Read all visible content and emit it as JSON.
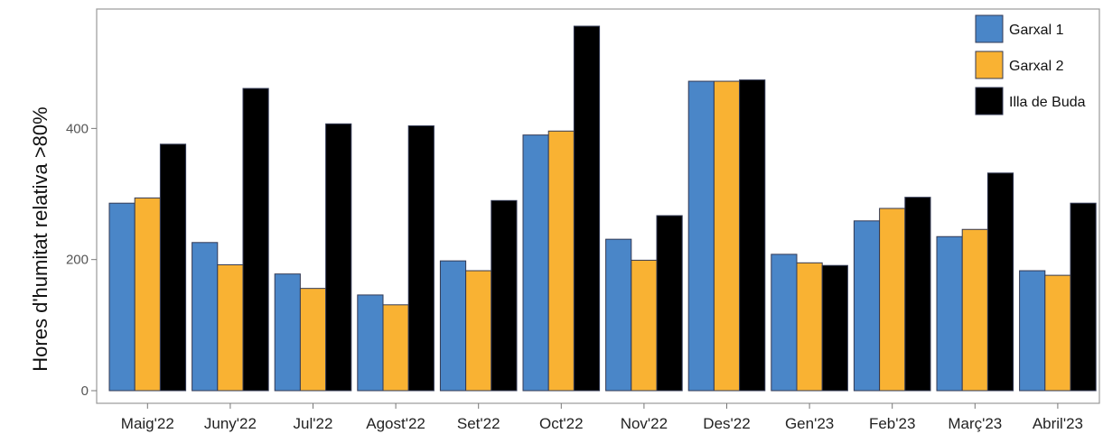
{
  "chart_data": {
    "type": "bar",
    "ylabel": "Hores d'humitat relativa >80%",
    "xlabel": "",
    "ylim": [
      0,
      580
    ],
    "yticks": [
      0,
      200,
      400
    ],
    "grid": false,
    "legend_position": "top-right",
    "categories": [
      "Maig'22",
      "Juny'22",
      "Jul'22",
      "Agost'22",
      "Set'22",
      "Oct'22",
      "Nov'22",
      "Des'22",
      "Gen'23",
      "Feb'23",
      "Març'23",
      "Abril'23"
    ],
    "series": [
      {
        "name": "Garxal 1",
        "color": "#4a86c8",
        "values": [
          286,
          226,
          178,
          146,
          198,
          390,
          231,
          472,
          208,
          259,
          235,
          183
        ]
      },
      {
        "name": "Garxal 2",
        "color": "#f9b233",
        "values": [
          294,
          192,
          156,
          131,
          183,
          396,
          199,
          472,
          195,
          278,
          246,
          176
        ]
      },
      {
        "name": "Illa de Buda",
        "color": "#000000",
        "values": [
          376,
          461,
          407,
          404,
          290,
          556,
          267,
          474,
          191,
          295,
          332,
          286
        ]
      }
    ]
  }
}
